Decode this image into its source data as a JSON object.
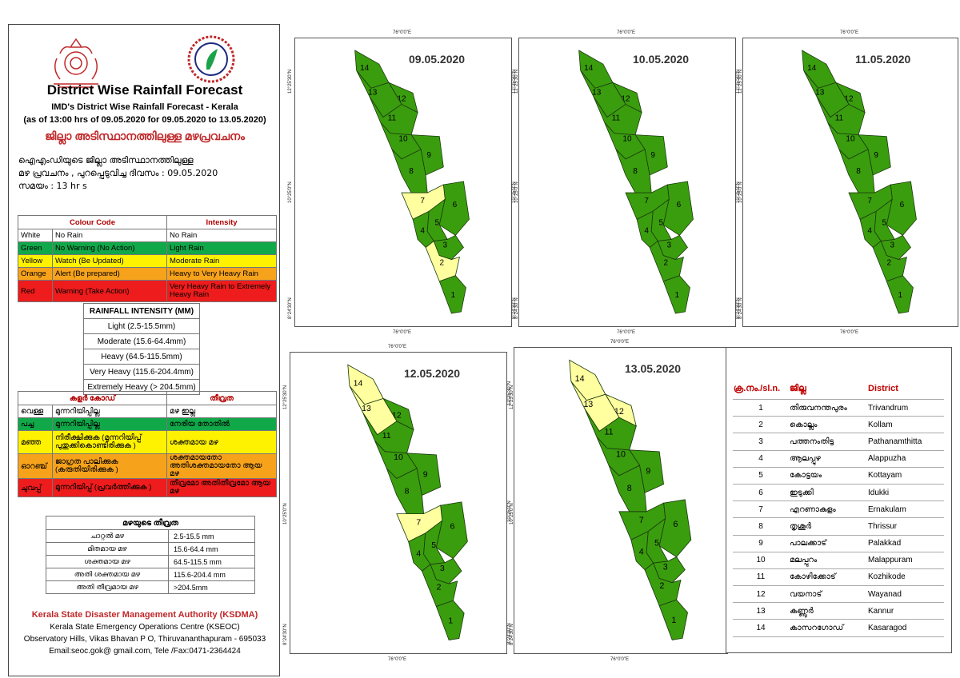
{
  "header": {
    "title": "District Wise Rainfall Forecast",
    "subtitle1": "IMD's District Wise Rainfall Forecast - Kerala",
    "subtitle2": "(as of 13:00 hrs of 09.05.2020  for 09.05.2020  to 13.05.2020)",
    "ml_title": "ജില്ലാ അടിസ്ഥാനത്തിലുള്ള മഴപ്രവചനം",
    "ml_line1": "ഐഎംഡിയുടെ ജില്ലാ   അടിസ്ഥാനത്തിലുള്ള",
    "ml_line2": "മഴ പ്രവചനം  , പുറപ്പെടുവിച്ച    ദിവസം : 09.05.2020",
    "ml_line3": "സമയം : 13  hr s"
  },
  "colours": {
    "white": "#ffffff",
    "green": "#11a84a",
    "yellow": "#fff200",
    "orange": "#f7a21b",
    "red": "#ee1c1c",
    "map_green": "#3a9d0e",
    "map_yellow": "#ffffa0",
    "title_red": "#c0282a"
  },
  "colour_code": {
    "head_code": "Colour Code",
    "head_intensity": "Intensity",
    "rows": [
      {
        "name": "White",
        "desc": "No Rain",
        "intensity": "No Rain"
      },
      {
        "name": "Green",
        "desc": "No Warning (No Action)",
        "intensity": "Light Rain"
      },
      {
        "name": "Yellow",
        "desc": "Watch (Be Updated)",
        "intensity": "Moderate Rain"
      },
      {
        "name": "Orange",
        "desc": "Alert (Be prepared)",
        "intensity": "Heavy to Very Heavy Rain"
      },
      {
        "name": "Red",
        "desc": "Warning (Take Action)",
        "intensity": "Very Heavy Rain to Extremely Heavy Rain"
      }
    ]
  },
  "rainfall_intensity": {
    "head": "RAINFALL INTENSITY (MM)",
    "rows": [
      "Light (2.5-15.5mm)",
      "Moderate (15.6-64.4mm)",
      "Heavy (64.5-115.5mm)",
      "Very Heavy (115.6-204.4mm)",
      "Extremely Heavy (> 204.5mm)"
    ]
  },
  "ml_colour_code": {
    "head_code": "കളർ കോഡ്",
    "head_intensity": "തീവ്രത",
    "rows": [
      {
        "name": "വെള്ള",
        "desc": "മുന്നറിയിപ്പില്ല",
        "intensity": "മഴ ഇല്ല"
      },
      {
        "name": "പച്ച",
        "desc": "മുന്നറിയിപ്പില്ല",
        "intensity": "നേരിയ തോതിൽ"
      },
      {
        "name": "മഞ്ഞ",
        "desc": "നിരീക്ഷിക്കുക (മുന്നറിയിപ്പ് പുതുക്കികൊണ്ടിരിക്കുക )",
        "intensity": "ശക്തമായ മഴ"
      },
      {
        "name": "ഓറഞ്ച്",
        "desc": "ജാഗ്രത പാലിക്കുക (കരുതിയിരിക്കുക )",
        "intensity": "ശക്തമായതോ അതിശക്തമായതോ ആയ മഴ"
      },
      {
        "name": "ചുവപ്പ്",
        "desc": "മുന്നറിയിപ്പ് (പ്രവർത്തിക്കുക )",
        "intensity": "തീവ്രമോ അതിതീവ്രമോ ആയ മഴ"
      }
    ]
  },
  "ml_intensity": {
    "head": "മഴയുടെ തീവ്രത",
    "rows": [
      {
        "label": "ചാറ്റൽ മഴ",
        "range": "2.5-15.5 mm"
      },
      {
        "label": "മിതമായ മഴ",
        "range": "15.6-64.4 mm"
      },
      {
        "label": "ശക്തമായ മഴ",
        "range": "64.5-115.5 mm"
      },
      {
        "label": "അതി ശക്തമായ മഴ",
        "range": "115.6-204.4 mm"
      },
      {
        "label": "അതി തീവ്രമായ മഴ",
        "range": ">204.5mm"
      }
    ]
  },
  "footer": {
    "org": "Kerala State Disaster Management Authority (KSDMA)",
    "line1": "Kerala State Emergency Operations Centre (KSEOC)",
    "line2": "Observatory Hills, Vikas Bhavan P O, Thiruvananthapuram - 695033",
    "line3": "Email:seoc.gok@ gmail.com, Tele /Fax:0471-2364424"
  },
  "map_labels": {
    "lon": "76°0'0\"E",
    "lat_n": "12°25'30\"N",
    "lat_m": "10°25'0\"N",
    "lat_s": "8°24'30\"N"
  },
  "maps": [
    {
      "date": "09.05.2020",
      "yellow": [
        2,
        7
      ]
    },
    {
      "date": "10.05.2020",
      "yellow": []
    },
    {
      "date": "11.05.2020",
      "yellow": []
    },
    {
      "date": "12.05.2020",
      "yellow": [
        7,
        13,
        14
      ]
    },
    {
      "date": "13.05.2020",
      "yellow": [
        12,
        13,
        14
      ]
    }
  ],
  "districts": {
    "head_no": "ക്ര.നം./sl.n.",
    "head_ml": "ജില്ല",
    "head_en": "District",
    "rows": [
      {
        "no": "1",
        "ml": "തിരുവനന്തപുരം",
        "en": "Trivandrum"
      },
      {
        "no": "2",
        "ml": "കൊല്ലം",
        "en": "Kollam"
      },
      {
        "no": "3",
        "ml": "പത്തനംതിട്ട",
        "en": "Pathanamthitta"
      },
      {
        "no": "4",
        "ml": "ആലപ്പുഴ",
        "en": "Alappuzha"
      },
      {
        "no": "5",
        "ml": "കോട്ടയം",
        "en": "Kottayam"
      },
      {
        "no": "6",
        "ml": "ഇടുക്കി",
        "en": "Idukki"
      },
      {
        "no": "7",
        "ml": "എറണാകുളം",
        "en": "Ernakulam"
      },
      {
        "no": "8",
        "ml": "തൃശൂർ",
        "en": "Thrissur"
      },
      {
        "no": "9",
        "ml": "പാലക്കാട്",
        "en": "Palakkad"
      },
      {
        "no": "10",
        "ml": "മലപ്പുറം",
        "en": "Malappuram"
      },
      {
        "no": "11",
        "ml": "കോഴിക്കോട്",
        "en": "Kozhikode"
      },
      {
        "no": "12",
        "ml": "വയനാട്",
        "en": "Wayanad"
      },
      {
        "no": "13",
        "ml": "കണ്ണൂർ",
        "en": "Kannur"
      },
      {
        "no": "14",
        "ml": "കാസറഗോഡ്",
        "en": "Kasaragod"
      }
    ]
  }
}
